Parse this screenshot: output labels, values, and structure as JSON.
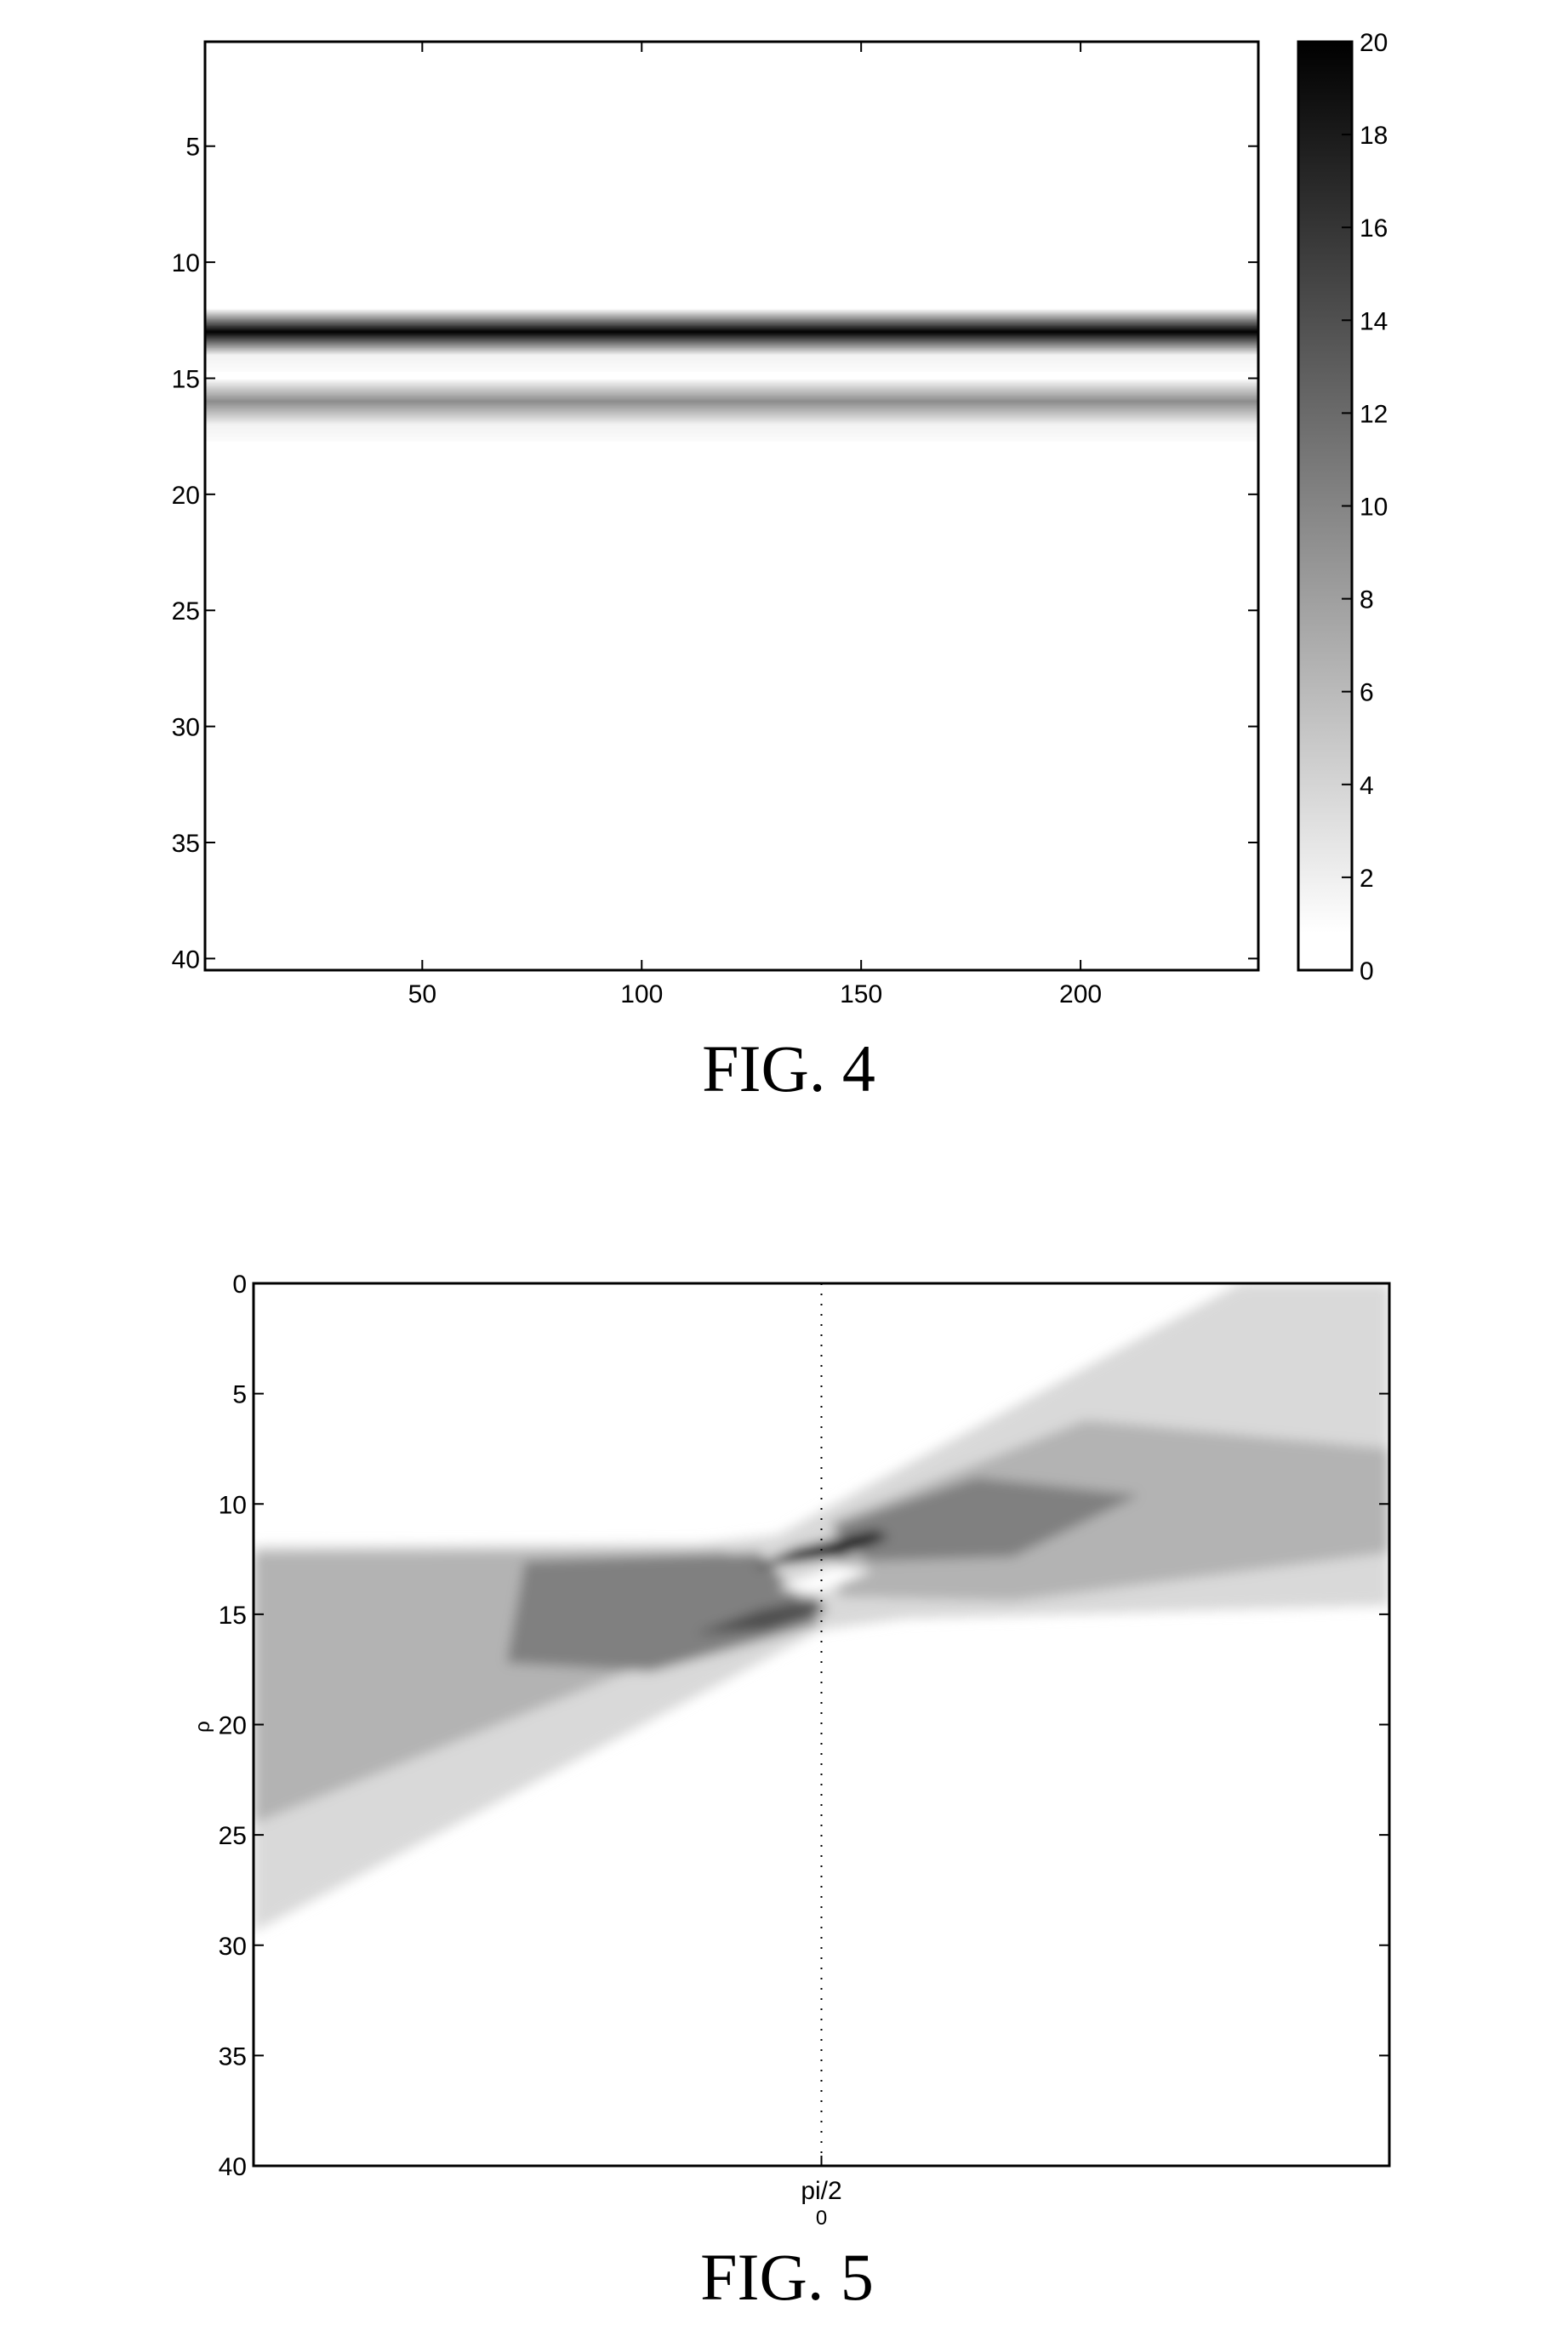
{
  "chart_data": [
    {
      "type": "heatmap",
      "caption": "FIG. 4",
      "colormap": "inverted gray (0 = white, max = black)",
      "xlim": [
        0.5,
        240.5
      ],
      "ylim": [
        0.5,
        40.5
      ],
      "y_reversed": true,
      "xticks": [
        50,
        100,
        150,
        200
      ],
      "yticks": [
        5,
        10,
        15,
        20,
        25,
        30,
        35,
        40
      ],
      "row_values_constant_across_columns": [
        0,
        0,
        0,
        0,
        0,
        0,
        0,
        0,
        0,
        0,
        0,
        0,
        20,
        1,
        0,
        9,
        1,
        0,
        0,
        0,
        0,
        0,
        0,
        0,
        0,
        0,
        0,
        0,
        0,
        0,
        0,
        0,
        0,
        0,
        0,
        0,
        0,
        0,
        0,
        0
      ],
      "colorbar": {
        "range": [
          0,
          20
        ],
        "ticks": [
          0,
          2,
          4,
          6,
          8,
          10,
          12,
          14,
          16,
          18,
          20
        ],
        "placement": "right"
      }
    },
    {
      "type": "heatmap",
      "caption": "FIG. 5",
      "ylabel": "ρ",
      "colormap": "inverted gray (0 = white, max = black)",
      "xlim": [
        0,
        3.1416
      ],
      "ylim": [
        0,
        40
      ],
      "y_reversed": true,
      "xticks": [
        {
          "value": 1.5708,
          "label": "pi/2"
        }
      ],
      "x_sublabel": "0",
      "yticks": [
        0,
        5,
        10,
        15,
        20,
        25,
        30,
        35,
        40
      ],
      "grid_x": true,
      "value_max": 20,
      "regions": [
        {
          "intensity": 3,
          "points": [
            [
              0,
              11.9
            ],
            [
              1.23,
              11.8
            ],
            [
              1.45,
              11.4
            ],
            [
              2.73,
              0
            ],
            [
              3.1416,
              0
            ],
            [
              3.1416,
              14.6
            ],
            [
              1.8,
              15.2
            ],
            [
              1.57,
              15.7
            ],
            [
              0,
              29.4
            ]
          ]
        },
        {
          "intensity": 6,
          "points": [
            [
              0,
              12.2
            ],
            [
              1.3,
              12.1
            ],
            [
              1.57,
              14.2
            ],
            [
              1.2,
              16.5
            ],
            [
              0,
              24.5
            ]
          ]
        },
        {
          "intensity": 6,
          "points": [
            [
              1.6,
              10.8
            ],
            [
              2.3,
              6.2
            ],
            [
              3.1416,
              7.5
            ],
            [
              3.1416,
              12.2
            ],
            [
              2.1,
              14.4
            ],
            [
              1.62,
              14.2
            ]
          ]
        },
        {
          "intensity": 10,
          "points": [
            [
              0.75,
              12.6
            ],
            [
              1.4,
              12.2
            ],
            [
              1.57,
              15.4
            ],
            [
              1.1,
              17.6
            ],
            [
              0.7,
              17.2
            ]
          ]
        },
        {
          "intensity": 10,
          "points": [
            [
              1.6,
              11.0
            ],
            [
              2.0,
              8.8
            ],
            [
              2.45,
              9.6
            ],
            [
              2.1,
              12.4
            ],
            [
              1.7,
              12.6
            ]
          ]
        },
        {
          "intensity": 20,
          "points": [
            [
              1.38,
              12.9
            ],
            [
              1.5,
              12.0
            ],
            [
              1.72,
              11.2
            ],
            [
              1.76,
              11.5
            ],
            [
              1.62,
              12.4
            ]
          ]
        },
        {
          "intensity": 14,
          "points": [
            [
              1.22,
              15.9
            ],
            [
              1.4,
              14.8
            ],
            [
              1.55,
              14.3
            ],
            [
              1.59,
              14.8
            ],
            [
              1.42,
              15.7
            ]
          ]
        },
        {
          "intensity": 0,
          "points": [
            [
              1.45,
              13.8
            ],
            [
              1.62,
              12.8
            ],
            [
              1.71,
              13.0
            ],
            [
              1.55,
              14.1
            ]
          ]
        }
      ]
    }
  ]
}
